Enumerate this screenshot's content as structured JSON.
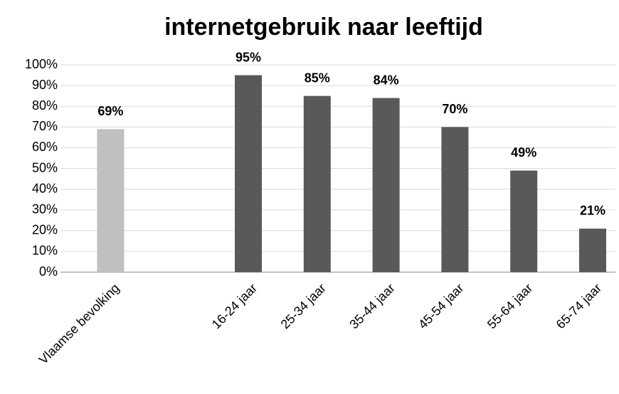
{
  "chart_data": {
    "type": "bar",
    "title": "internetgebruik naar leeftijd",
    "categories": [
      "Vlaamse bevolking",
      null,
      "16-24 jaar",
      "25-34 jaar",
      "35-44 jaar",
      "45-54 jaar",
      "55-64 jaar",
      "65-74 jaar"
    ],
    "values": [
      69,
      null,
      95,
      85,
      84,
      70,
      49,
      21
    ],
    "value_labels": [
      "69%",
      null,
      "95%",
      "85%",
      "84%",
      "70%",
      "49%",
      "21%"
    ],
    "colors": [
      "#c0c0c0",
      null,
      "#595959",
      "#595959",
      "#595959",
      "#595959",
      "#595959",
      "#595959"
    ],
    "ylim": [
      0,
      100
    ],
    "yticks": [
      {
        "value": 0,
        "label": "0%"
      },
      {
        "value": 10,
        "label": "10%"
      },
      {
        "value": 20,
        "label": "20%"
      },
      {
        "value": 30,
        "label": "30%"
      },
      {
        "value": 40,
        "label": "40%"
      },
      {
        "value": 50,
        "label": "50%"
      },
      {
        "value": 60,
        "label": "60%"
      },
      {
        "value": 70,
        "label": "70%"
      },
      {
        "value": 80,
        "label": "80%"
      },
      {
        "value": 90,
        "label": "90%"
      },
      {
        "value": 100,
        "label": "100%"
      }
    ],
    "grid": true
  }
}
